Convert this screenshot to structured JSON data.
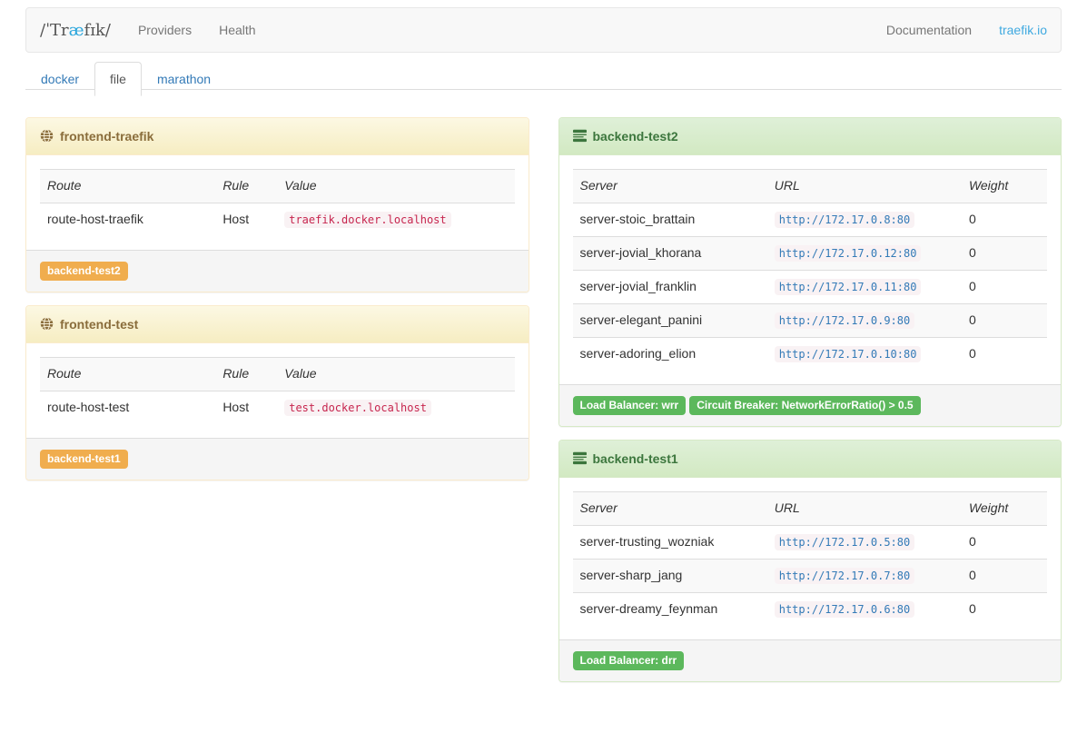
{
  "navbar": {
    "brand": {
      "pre": "/ˈTr",
      "ae": "æ",
      "post": "fɪk/"
    },
    "items": [
      {
        "label": "Providers"
      },
      {
        "label": "Health"
      }
    ],
    "right_items": [
      {
        "label": "Documentation",
        "style": "plain"
      },
      {
        "label": "traefik.io",
        "style": "blue"
      }
    ]
  },
  "tabs": [
    {
      "label": "docker",
      "active": false
    },
    {
      "label": "file",
      "active": true
    },
    {
      "label": "marathon",
      "active": false
    }
  ],
  "frontend_columns": [
    "Route",
    "Rule",
    "Value"
  ],
  "backend_columns": [
    "Server",
    "URL",
    "Weight"
  ],
  "frontends": [
    {
      "title": "frontend-traefik",
      "columns": [
        "Route",
        "Rule",
        "Value"
      ],
      "rows": [
        {
          "route": "route-host-traefik",
          "rule": "Host",
          "value": "traefik.docker.localhost"
        }
      ],
      "backends": [
        "backend-test2"
      ]
    },
    {
      "title": "frontend-test",
      "columns": [
        "Route",
        "Rule",
        "Value"
      ],
      "rows": [
        {
          "route": "route-host-test",
          "rule": "Host",
          "value": "test.docker.localhost"
        }
      ],
      "backends": [
        "backend-test1"
      ]
    }
  ],
  "backends": [
    {
      "title": "backend-test2",
      "columns": [
        "Server",
        "URL",
        "Weight"
      ],
      "servers": [
        {
          "name": "server-stoic_brattain",
          "url": "http://172.17.0.8:80",
          "weight": "0"
        },
        {
          "name": "server-jovial_khorana",
          "url": "http://172.17.0.12:80",
          "weight": "0"
        },
        {
          "name": "server-jovial_franklin",
          "url": "http://172.17.0.11:80",
          "weight": "0"
        },
        {
          "name": "server-elegant_panini",
          "url": "http://172.17.0.9:80",
          "weight": "0"
        },
        {
          "name": "server-adoring_elion",
          "url": "http://172.17.0.10:80",
          "weight": "0"
        }
      ],
      "labels": [
        "Load Balancer: wrr",
        "Circuit Breaker: NetworkErrorRatio() > 0.5"
      ]
    },
    {
      "title": "backend-test1",
      "columns": [
        "Server",
        "URL",
        "Weight"
      ],
      "servers": [
        {
          "name": "server-trusting_wozniak",
          "url": "http://172.17.0.5:80",
          "weight": "0"
        },
        {
          "name": "server-sharp_jang",
          "url": "http://172.17.0.7:80",
          "weight": "0"
        },
        {
          "name": "server-dreamy_feynman",
          "url": "http://172.17.0.6:80",
          "weight": "0"
        }
      ],
      "labels": [
        "Load Balancer: drr"
      ]
    }
  ],
  "colors": {
    "brand_accent": "#2aa6dc",
    "nav_link": "#777777",
    "nav_link_blue": "#3fa9e0",
    "tab_link": "#337ab7",
    "warning_text": "#8a6d3b",
    "warning_bg": "#fcf8e3",
    "warning_border": "#faebcc",
    "success_text": "#3c763d",
    "success_bg": "#dff0d8",
    "success_border": "#d6e9c6",
    "label_warning": "#f0ad4e",
    "label_success": "#5cb85c",
    "code_pink_bg": "#f9f2f4",
    "code_value_text": "#c7254e",
    "code_url_text": "#337ab7"
  }
}
